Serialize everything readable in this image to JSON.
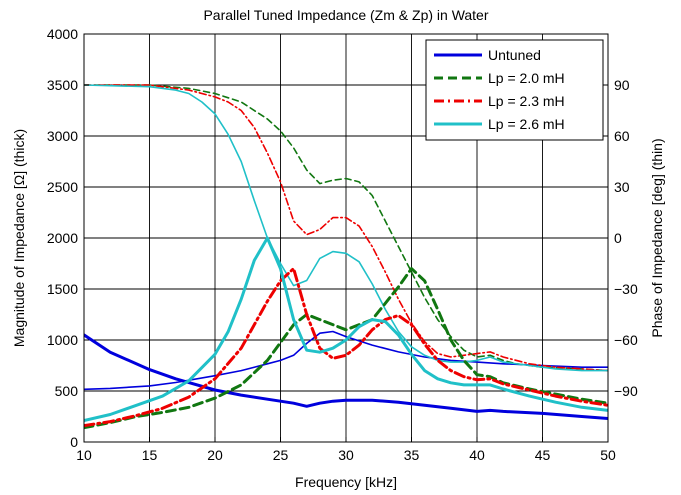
{
  "chart_data": {
    "type": "line",
    "title": "Parallel Tuned Impedance (Zm & Zp) in Water",
    "xlabel": "Frequency [kHz]",
    "ylabel_left": "Magnitude of Impedance [Ω] (thick)",
    "ylabel_right": "Phase of Impedance [deg] (thin)",
    "xlim": [
      10,
      50
    ],
    "ylim_left": [
      0,
      4000
    ],
    "ylim_right": [
      -120,
      120
    ],
    "x_ticks": [
      10,
      15,
      20,
      25,
      30,
      35,
      40,
      45,
      50
    ],
    "y_ticks_left": [
      0,
      500,
      1000,
      1500,
      2000,
      2500,
      3000,
      3500,
      4000
    ],
    "y_ticks_right": [
      -90,
      -60,
      -30,
      0,
      30,
      60,
      90
    ],
    "grid": true,
    "legend_position": "top-right",
    "legend": [
      {
        "label": "Untuned",
        "color": "#0000dd",
        "style": "solid"
      },
      {
        "label": "Lp = 2.0 mH",
        "color": "#117711",
        "style": "dashed"
      },
      {
        "label": "Lp = 2.3 mH",
        "color": "#ee0000",
        "style": "dashdot"
      },
      {
        "label": "Lp = 2.6 mH",
        "color": "#20c0c8",
        "style": "solid"
      }
    ],
    "series": [
      {
        "legend": 0,
        "axis": "left",
        "weight": "thick",
        "x": [
          10,
          12,
          15,
          17,
          20,
          22,
          24,
          25,
          26,
          27,
          28,
          29,
          30,
          32,
          34,
          36,
          38,
          40,
          41,
          42,
          45,
          48,
          50
        ],
        "y": [
          1050,
          880,
          710,
          620,
          510,
          460,
          420,
          400,
          380,
          350,
          380,
          400,
          410,
          410,
          390,
          360,
          330,
          300,
          310,
          300,
          280,
          250,
          230
        ]
      },
      {
        "legend": 0,
        "axis": "right",
        "weight": "thin",
        "x": [
          10,
          12,
          15,
          17,
          20,
          22,
          24,
          25,
          26,
          27,
          28,
          29,
          30,
          32,
          34,
          36,
          38,
          40,
          42,
          45,
          48,
          50
        ],
        "y": [
          -89,
          -88.5,
          -87,
          -85,
          -81,
          -78,
          -74,
          -72,
          -69,
          -62,
          -56,
          -55,
          -58,
          -63,
          -67,
          -70,
          -72,
          -73,
          -74,
          -75,
          -76,
          -76
        ]
      },
      {
        "legend": 1,
        "axis": "left",
        "weight": "thick",
        "x": [
          10,
          12,
          14,
          16,
          18,
          20,
          22,
          24,
          26,
          27,
          28,
          30,
          32,
          34,
          35,
          36,
          37,
          38,
          39,
          40,
          41,
          42,
          44,
          46,
          48,
          50
        ],
        "y": [
          140,
          190,
          250,
          290,
          340,
          430,
          560,
          800,
          1150,
          1250,
          1200,
          1100,
          1200,
          1520,
          1700,
          1580,
          1300,
          1000,
          800,
          660,
          640,
          580,
          520,
          470,
          420,
          380
        ]
      },
      {
        "legend": 1,
        "axis": "right",
        "weight": "thin",
        "x": [
          10,
          15,
          18,
          20,
          22,
          24,
          25,
          26,
          27,
          28,
          29,
          30,
          31,
          32,
          33,
          34,
          35,
          36,
          37,
          38,
          39,
          40,
          41,
          42,
          43,
          45,
          48,
          50
        ],
        "y": [
          90,
          90,
          88,
          85,
          80,
          70,
          63,
          53,
          40,
          32,
          34,
          35,
          33,
          25,
          10,
          -5,
          -20,
          -35,
          -48,
          -58,
          -66,
          -70,
          -69,
          -72,
          -74,
          -76,
          -77,
          -78
        ]
      },
      {
        "legend": 2,
        "axis": "left",
        "weight": "thick",
        "x": [
          10,
          12,
          14,
          16,
          18,
          20,
          22,
          23,
          24,
          25,
          26,
          27,
          28,
          29,
          30,
          31,
          32,
          33,
          34,
          35,
          36,
          37,
          38,
          39,
          40,
          41,
          42,
          44,
          46,
          48,
          50
        ],
        "y": [
          160,
          200,
          260,
          330,
          440,
          620,
          920,
          1150,
          1380,
          1580,
          1700,
          1250,
          920,
          820,
          850,
          950,
          1100,
          1200,
          1240,
          1150,
          960,
          800,
          700,
          640,
          610,
          620,
          570,
          510,
          450,
          400,
          360
        ]
      },
      {
        "legend": 2,
        "axis": "right",
        "weight": "thin",
        "x": [
          10,
          15,
          18,
          20,
          21,
          22,
          23,
          24,
          25,
          26,
          27,
          28,
          29,
          30,
          31,
          32,
          33,
          34,
          35,
          36,
          37,
          38,
          39,
          40,
          41,
          42,
          44,
          46,
          48,
          50
        ],
        "y": [
          90,
          90,
          87,
          83,
          80,
          75,
          65,
          50,
          33,
          10,
          2,
          5,
          12,
          12,
          7,
          -5,
          -20,
          -36,
          -50,
          -61,
          -68,
          -70,
          -69,
          -68,
          -67,
          -70,
          -74,
          -76,
          -77,
          -78
        ]
      },
      {
        "legend": 3,
        "axis": "left",
        "weight": "thick",
        "x": [
          10,
          12,
          14,
          16,
          18,
          20,
          21,
          22,
          23,
          24,
          25,
          26,
          27,
          28,
          29,
          30,
          31,
          32,
          33,
          34,
          35,
          36,
          37,
          38,
          39,
          40,
          41,
          42,
          44,
          46,
          48,
          50
        ],
        "y": [
          210,
          270,
          360,
          450,
          600,
          860,
          1080,
          1400,
          1780,
          2000,
          1700,
          1200,
          900,
          880,
          920,
          1000,
          1130,
          1200,
          1180,
          1050,
          860,
          700,
          620,
          580,
          560,
          560,
          560,
          520,
          450,
          390,
          340,
          310
        ]
      },
      {
        "legend": 3,
        "axis": "right",
        "weight": "thin",
        "x": [
          10,
          15,
          17,
          18,
          19,
          20,
          21,
          22,
          23,
          24,
          25,
          26,
          27,
          28,
          29,
          30,
          31,
          32,
          33,
          34,
          35,
          36,
          37,
          38,
          39,
          40,
          41,
          42,
          44,
          46,
          48,
          50
        ],
        "y": [
          90,
          89,
          87,
          85,
          80,
          73,
          61,
          45,
          22,
          0,
          -15,
          -28,
          -25,
          -12,
          -8,
          -9,
          -14,
          -27,
          -42,
          -55,
          -64,
          -69,
          -72,
          -73,
          -73,
          -72,
          -70,
          -73,
          -75,
          -77,
          -78,
          -78
        ]
      }
    ]
  }
}
